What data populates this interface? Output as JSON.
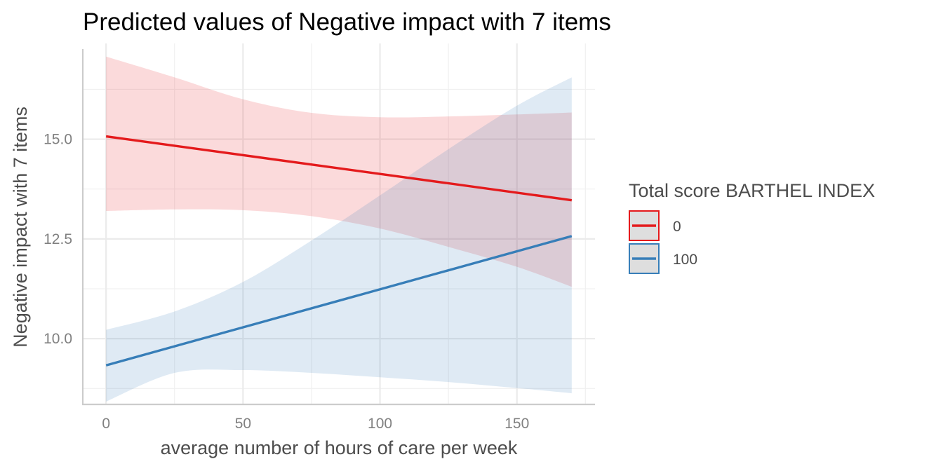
{
  "chart_data": {
    "type": "line",
    "title": "Predicted values of Negative impact with 7 items",
    "xlabel": "average number of hours of care per week",
    "ylabel": "Negative impact with 7 items",
    "xlim": [
      -8.5,
      178.5
    ],
    "ylim": [
      8.35,
      17.4
    ],
    "x_ticks": [
      0,
      50,
      100,
      150
    ],
    "x_tick_labels": [
      "0",
      "50",
      "100",
      "150"
    ],
    "y_ticks": [
      10.0,
      12.5,
      15.0
    ],
    "y_tick_labels": [
      "10.0",
      "12.5",
      "15.0"
    ],
    "grid": true,
    "legend": {
      "title": "Total score BARTHEL INDEX",
      "position": "right"
    },
    "series": [
      {
        "name": "0",
        "color": "#e41a1c",
        "x": [
          0,
          170
        ],
        "y": [
          15.07,
          13.47
        ],
        "ci": {
          "x": [
            0,
            25,
            50,
            75,
            100,
            125,
            150,
            170
          ],
          "lower": [
            13.2,
            13.24,
            13.22,
            13.07,
            12.76,
            12.3,
            11.8,
            11.3
          ],
          "upper": [
            17.07,
            16.55,
            16.0,
            15.66,
            15.55,
            15.57,
            15.62,
            15.67
          ]
        }
      },
      {
        "name": "100",
        "color": "#377eb8",
        "x": [
          0,
          170
        ],
        "y": [
          9.33,
          12.57
        ],
        "ci": {
          "x": [
            0,
            25,
            50,
            75,
            100,
            125,
            150,
            170
          ],
          "lower": [
            8.42,
            9.14,
            9.21,
            9.14,
            9.03,
            8.91,
            8.76,
            8.63
          ],
          "upper": [
            10.22,
            10.68,
            11.42,
            12.46,
            13.59,
            14.75,
            15.84,
            16.55
          ]
        }
      }
    ]
  }
}
